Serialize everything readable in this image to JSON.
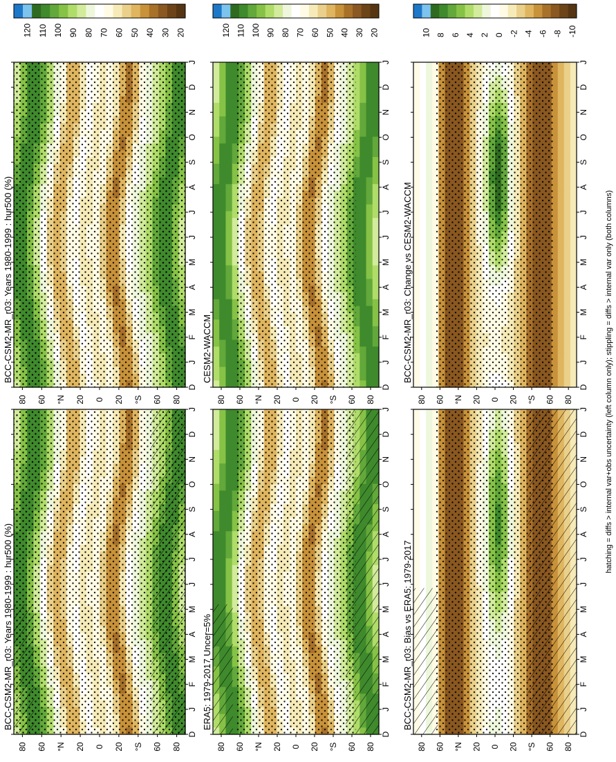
{
  "footnote": "hatching = diffs > internal var+obs uncertainty (left column only); stippling = diffs > internal var only (both columns)",
  "chart_data": [
    {
      "type": "heatmap",
      "title": "BCC-CSM2-MR_r03: Years 1980-1999 : hur500 (%)",
      "field": "climatology",
      "hatch": "high-lat",
      "stipple": "dense"
    },
    {
      "type": "heatmap",
      "title": "BCC-CSM2-MR_r03: Years 1980-1999 : hur500 (%)",
      "field": "climatology",
      "hatch": "none",
      "stipple": "dense"
    },
    {
      "type": "heatmap",
      "title": "ERA5: 1979-2017 Uncer=5%",
      "field": "climatology",
      "hatch": "high-lat",
      "stipple": "medium"
    },
    {
      "type": "heatmap",
      "title": "CESM2-WACCM",
      "field": "climatology",
      "hatch": "none",
      "stipple": "medium"
    },
    {
      "type": "heatmap",
      "title": "BCC-CSM2-MR_r03: Bias vs ERA5: 1979-2017",
      "field": "difference",
      "hatch": "south",
      "stipple": "medium"
    },
    {
      "type": "heatmap",
      "title": "BCC-CSM2-MR_r03: Change vs CESM2-WACCM",
      "field": "difference",
      "hatch": "none",
      "stipple": "medium"
    }
  ],
  "axes": {
    "x_ticks": [
      "D",
      "J",
      "F",
      "M",
      "A",
      "M",
      "J",
      "J",
      "A",
      "S",
      "O",
      "N",
      "D",
      "J"
    ],
    "y_ticks": [
      "80",
      "60",
      "°N",
      "20",
      "0",
      "20",
      "°S",
      "60",
      "80"
    ]
  },
  "colorbars": {
    "climatology": {
      "labels": [
        "120",
        "110",
        "100",
        "90",
        "80",
        "70",
        "60",
        "50",
        "40",
        "30",
        "20"
      ],
      "colors": [
        "#1e78c8",
        "#7cc3ee",
        "#2e6b20",
        "#3f8a2c",
        "#62a83a",
        "#86c246",
        "#b0dc6a",
        "#d2eb9c",
        "#eef7dc",
        "#ffffff",
        "#fffbe5",
        "#f6ebb8",
        "#ead08a",
        "#dfb55f",
        "#c8923a",
        "#a8712a",
        "#8a5820",
        "#6d4418",
        "#563612"
      ]
    },
    "difference": {
      "labels": [
        "10",
        "8",
        "6",
        "4",
        "2",
        "0",
        "-2",
        "-4",
        "-6",
        "-8",
        "-10"
      ],
      "colors": [
        "#1e78c8",
        "#7cc3ee",
        "#2e6b20",
        "#3f8a2c",
        "#62a83a",
        "#86c246",
        "#b0dc6a",
        "#d2eb9c",
        "#eef7dc",
        "#ffffff",
        "#fffbe5",
        "#f6ebb8",
        "#ead08a",
        "#dfb55f",
        "#c8923a",
        "#a8712a",
        "#8a5820",
        "#6d4418",
        "#563612"
      ]
    }
  }
}
